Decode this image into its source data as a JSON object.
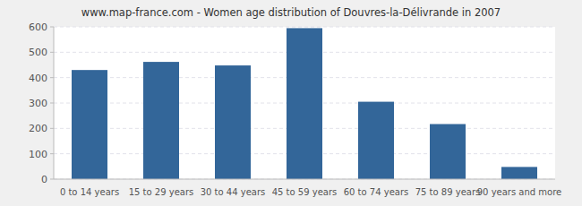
{
  "chart_data": {
    "type": "bar",
    "title": "www.map-france.com - Women age distribution of Douvres-la-Délivrande in 2007",
    "categories": [
      "0 to 14 years",
      "15 to 29 years",
      "30 to 44 years",
      "45 to 59 years",
      "60 to 74 years",
      "75 to 89 years",
      "90 years and more"
    ],
    "values": [
      430,
      462,
      448,
      595,
      305,
      217,
      48
    ],
    "color": "#336699",
    "ylim": [
      0,
      600
    ],
    "yticks": [
      0,
      100,
      200,
      300,
      400,
      500,
      600
    ],
    "grid": true
  }
}
